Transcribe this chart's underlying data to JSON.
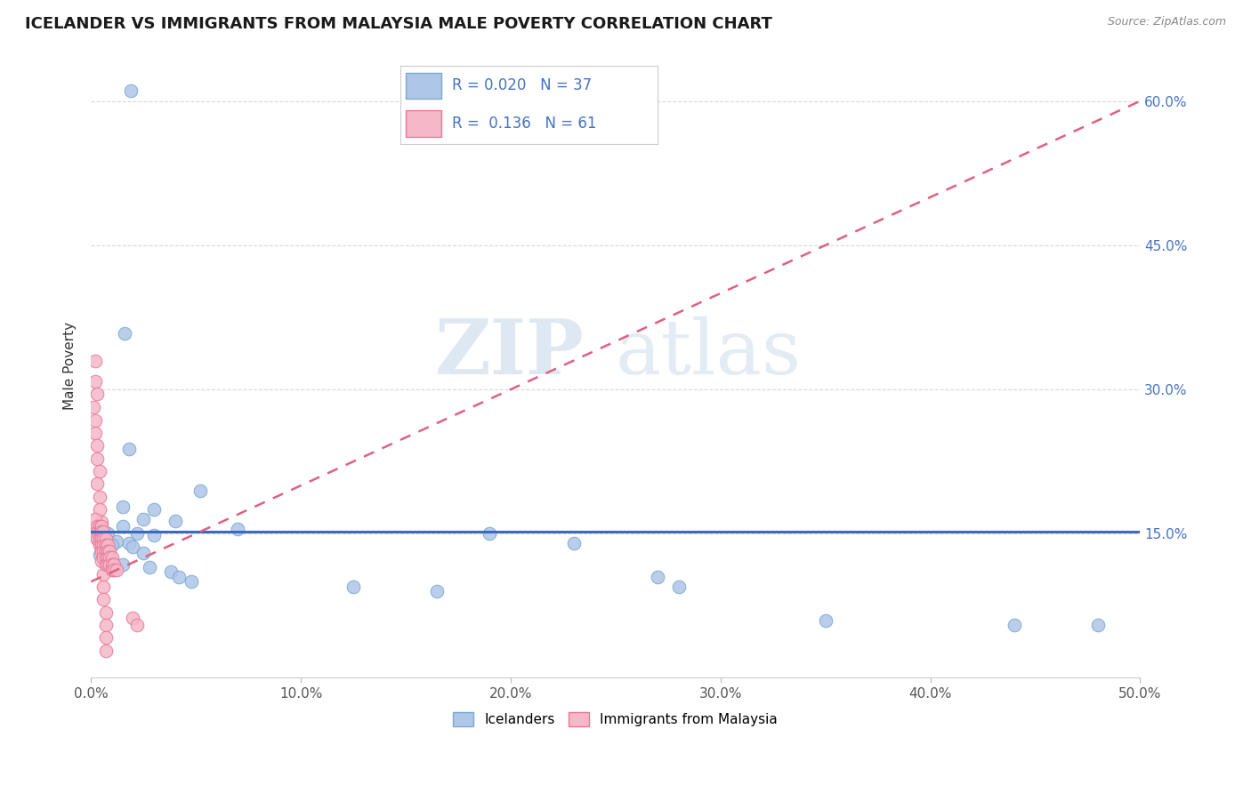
{
  "title": "ICELANDER VS IMMIGRANTS FROM MALAYSIA MALE POVERTY CORRELATION CHART",
  "source_text": "Source: ZipAtlas.com",
  "ylabel": "Male Poverty",
  "watermark_zip": "ZIP",
  "watermark_atlas": "atlas",
  "x_min": 0.0,
  "x_max": 0.5,
  "y_min": 0.0,
  "y_max": 0.65,
  "x_ticks": [
    0.0,
    0.1,
    0.2,
    0.3,
    0.4,
    0.5
  ],
  "x_tick_labels": [
    "0.0%",
    "10.0%",
    "20.0%",
    "30.0%",
    "40.0%",
    "50.0%"
  ],
  "y_ticks_right": [
    0.15,
    0.3,
    0.45,
    0.6
  ],
  "y_tick_labels_right": [
    "15.0%",
    "30.0%",
    "45.0%",
    "60.0%"
  ],
  "icelander_color": "#aec6e8",
  "malaysia_color": "#f4b8c8",
  "icelander_edge": "#7aaace",
  "malaysia_edge": "#e87898",
  "trend_icelander_color": "#3a6bbf",
  "trend_malaysia_color": "#e06080",
  "R_icelander": 0.02,
  "N_icelander": 37,
  "R_malaysia": 0.136,
  "N_malaysia": 61,
  "legend_icelander_label": "Icelanders",
  "legend_malaysia_label": "Immigrants from Malaysia",
  "icelander_scatter": [
    [
      0.019,
      0.611
    ],
    [
      0.016,
      0.358
    ],
    [
      0.018,
      0.238
    ],
    [
      0.052,
      0.195
    ],
    [
      0.015,
      0.178
    ],
    [
      0.03,
      0.175
    ],
    [
      0.025,
      0.165
    ],
    [
      0.04,
      0.163
    ],
    [
      0.015,
      0.158
    ],
    [
      0.07,
      0.155
    ],
    [
      0.022,
      0.15
    ],
    [
      0.008,
      0.15
    ],
    [
      0.03,
      0.148
    ],
    [
      0.003,
      0.145
    ],
    [
      0.012,
      0.142
    ],
    [
      0.018,
      0.14
    ],
    [
      0.01,
      0.138
    ],
    [
      0.02,
      0.136
    ],
    [
      0.006,
      0.133
    ],
    [
      0.025,
      0.13
    ],
    [
      0.004,
      0.128
    ],
    [
      0.008,
      0.125
    ],
    [
      0.01,
      0.122
    ],
    [
      0.015,
      0.118
    ],
    [
      0.028,
      0.115
    ],
    [
      0.038,
      0.11
    ],
    [
      0.042,
      0.105
    ],
    [
      0.048,
      0.1
    ],
    [
      0.125,
      0.095
    ],
    [
      0.165,
      0.09
    ],
    [
      0.19,
      0.15
    ],
    [
      0.23,
      0.14
    ],
    [
      0.27,
      0.105
    ],
    [
      0.28,
      0.095
    ],
    [
      0.35,
      0.06
    ],
    [
      0.44,
      0.055
    ],
    [
      0.48,
      0.055
    ]
  ],
  "malaysia_scatter": [
    [
      0.002,
      0.33
    ],
    [
      0.002,
      0.308
    ],
    [
      0.003,
      0.295
    ],
    [
      0.001,
      0.282
    ],
    [
      0.002,
      0.268
    ],
    [
      0.002,
      0.255
    ],
    [
      0.003,
      0.242
    ],
    [
      0.003,
      0.228
    ],
    [
      0.004,
      0.215
    ],
    [
      0.003,
      0.202
    ],
    [
      0.004,
      0.188
    ],
    [
      0.004,
      0.175
    ],
    [
      0.005,
      0.162
    ],
    [
      0.004,
      0.148
    ],
    [
      0.005,
      0.135
    ],
    [
      0.005,
      0.122
    ],
    [
      0.006,
      0.108
    ],
    [
      0.006,
      0.095
    ],
    [
      0.006,
      0.082
    ],
    [
      0.007,
      0.068
    ],
    [
      0.007,
      0.055
    ],
    [
      0.007,
      0.042
    ],
    [
      0.007,
      0.028
    ],
    [
      0.002,
      0.165
    ],
    [
      0.003,
      0.158
    ],
    [
      0.003,
      0.152
    ],
    [
      0.003,
      0.145
    ],
    [
      0.004,
      0.158
    ],
    [
      0.004,
      0.152
    ],
    [
      0.004,
      0.145
    ],
    [
      0.004,
      0.138
    ],
    [
      0.005,
      0.158
    ],
    [
      0.005,
      0.152
    ],
    [
      0.005,
      0.145
    ],
    [
      0.005,
      0.138
    ],
    [
      0.005,
      0.132
    ],
    [
      0.006,
      0.152
    ],
    [
      0.006,
      0.145
    ],
    [
      0.006,
      0.138
    ],
    [
      0.006,
      0.132
    ],
    [
      0.006,
      0.125
    ],
    [
      0.007,
      0.145
    ],
    [
      0.007,
      0.138
    ],
    [
      0.007,
      0.132
    ],
    [
      0.007,
      0.125
    ],
    [
      0.007,
      0.118
    ],
    [
      0.008,
      0.138
    ],
    [
      0.008,
      0.132
    ],
    [
      0.008,
      0.125
    ],
    [
      0.008,
      0.118
    ],
    [
      0.009,
      0.132
    ],
    [
      0.009,
      0.125
    ],
    [
      0.009,
      0.118
    ],
    [
      0.01,
      0.125
    ],
    [
      0.01,
      0.118
    ],
    [
      0.01,
      0.112
    ],
    [
      0.011,
      0.118
    ],
    [
      0.011,
      0.112
    ],
    [
      0.012,
      0.112
    ],
    [
      0.02,
      0.062
    ],
    [
      0.022,
      0.055
    ]
  ]
}
